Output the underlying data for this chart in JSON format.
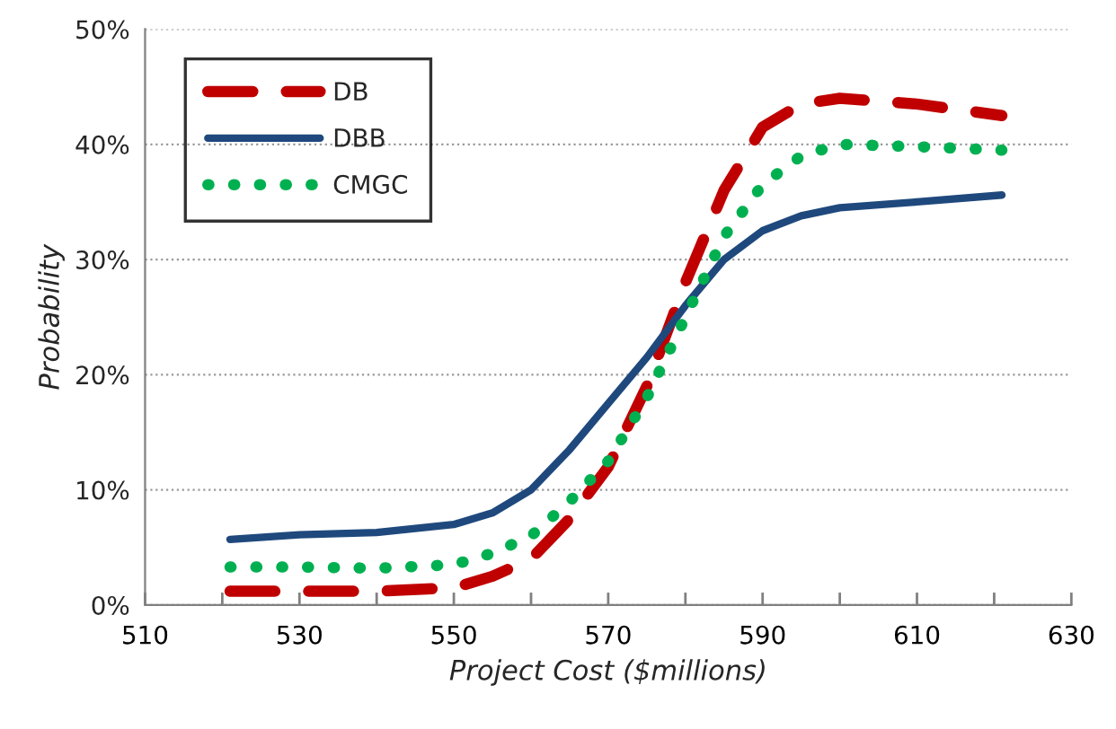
{
  "chart_data": {
    "type": "line",
    "xlabel": "Project Cost ($millions)",
    "ylabel": "Probability",
    "xlim": [
      510,
      630
    ],
    "xticks": [
      510,
      {
        "value": 520,
        "label": null
      },
      530,
      {
        "value": 540,
        "label": null
      },
      550,
      {
        "value": 560,
        "label": null
      },
      570,
      {
        "value": 580,
        "label": null
      },
      590,
      {
        "value": 600,
        "label": null
      },
      610,
      {
        "value": 620,
        "label": null
      },
      630
    ],
    "ylim": [
      0,
      50
    ],
    "yticks": [
      {
        "value": 0,
        "label": "0%"
      },
      {
        "value": 10,
        "label": "10%"
      },
      {
        "value": 20,
        "label": "20%"
      },
      {
        "value": 30,
        "label": "30%"
      },
      {
        "value": 40,
        "label": "40%"
      },
      {
        "value": 50,
        "label": "50%"
      }
    ],
    "grid": "y",
    "legend": "top left",
    "series": [
      {
        "name": "DB",
        "color": "#c00000",
        "line_style": "dashed",
        "x": [
          521,
          530,
          540,
          550,
          555,
          560,
          565,
          570,
          575,
          580,
          585,
          590,
          595,
          600,
          610,
          621
        ],
        "values": [
          1.2,
          1.2,
          1.2,
          1.5,
          2.5,
          4,
          7.5,
          12,
          19,
          28,
          36,
          41.5,
          43.5,
          44,
          43.5,
          42.5
        ]
      },
      {
        "name": "DBB",
        "color": "#1f497d",
        "line_style": "solid",
        "x": [
          521,
          530,
          540,
          550,
          555,
          560,
          565,
          570,
          575,
          580,
          585,
          590,
          595,
          600,
          610,
          621
        ],
        "values": [
          5.7,
          6.1,
          6.3,
          7,
          8,
          10,
          13.5,
          17.5,
          21.5,
          26,
          30,
          32.5,
          33.8,
          34.5,
          35,
          35.6
        ]
      },
      {
        "name": "CMGC",
        "color": "#00b050",
        "line_style": "dotted",
        "x": [
          521,
          530,
          540,
          550,
          555,
          560,
          565,
          570,
          575,
          580,
          585,
          590,
          595,
          600,
          610,
          621
        ],
        "values": [
          3.3,
          3.3,
          3.2,
          3.5,
          4.5,
          6,
          9,
          12.5,
          18,
          25,
          32,
          36.5,
          39,
          40,
          39.8,
          39.5
        ]
      }
    ]
  }
}
